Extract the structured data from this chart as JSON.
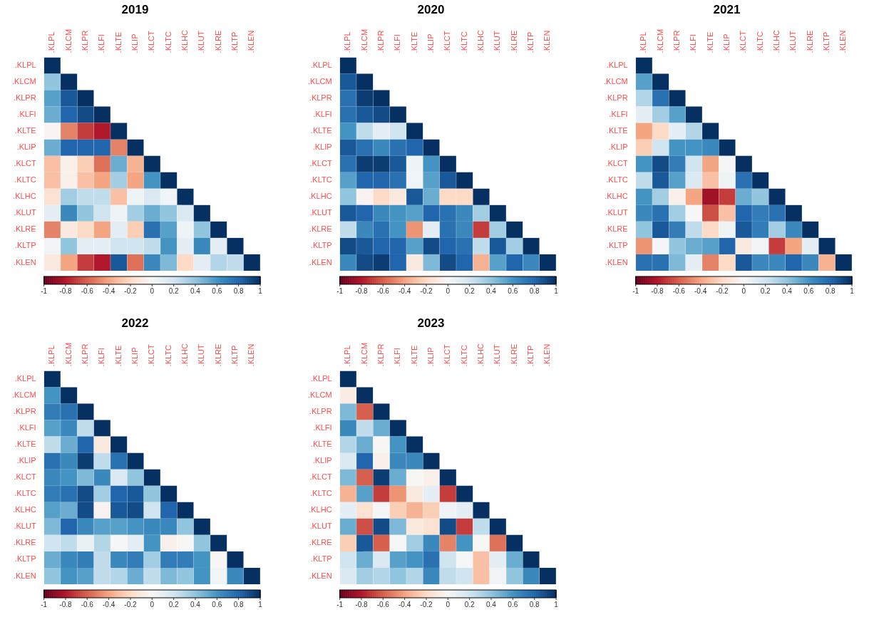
{
  "chart_data": [
    {
      "type": "heatmap",
      "title": "2019",
      "categories": [
        ".KLPL",
        ".KLCM",
        ".KLPR",
        ".KLFI",
        ".KLTE",
        ".KLIP",
        ".KLCT",
        ".KLTC",
        ".KLHC",
        ".KLUT",
        ".KLRE",
        ".KLTP",
        ".KLEN"
      ],
      "y_categories": [
        ".KLPL",
        ".KLCM",
        ".KLPR",
        ".KLFI",
        ".KLTE",
        ".KLIP",
        ".KLCT",
        ".KLTC",
        ".KLHC",
        ".KLUT",
        ".KLRE",
        ".KLTP",
        ".KLEN"
      ],
      "clim": [
        -1,
        1
      ],
      "cticks": [
        -1,
        -0.8,
        -0.6,
        -0.4,
        -0.2,
        0,
        0.2,
        0.4,
        0.6,
        0.8,
        1
      ],
      "cells": [
        [
          1,
          null,
          null,
          null,
          null,
          null,
          null,
          null,
          null,
          null,
          null,
          null,
          null
        ],
        [
          0.4,
          1,
          null,
          null,
          null,
          null,
          null,
          null,
          null,
          null,
          null,
          null,
          null
        ],
        [
          0.55,
          0.85,
          1,
          null,
          null,
          null,
          null,
          null,
          null,
          null,
          null,
          null,
          null
        ],
        [
          0.5,
          0.8,
          0.9,
          1,
          null,
          null,
          null,
          null,
          null,
          null,
          null,
          null,
          null
        ],
        [
          -0.02,
          -0.5,
          -0.7,
          -0.8,
          1,
          null,
          null,
          null,
          null,
          null,
          null,
          null,
          null
        ],
        [
          0.5,
          0.8,
          0.8,
          0.8,
          -0.5,
          1,
          null,
          null,
          null,
          null,
          null,
          null,
          null
        ],
        [
          -0.3,
          -0.05,
          -0.25,
          -0.55,
          0.5,
          -0.35,
          1,
          null,
          null,
          null,
          null,
          null,
          null
        ],
        [
          -0.3,
          -0.05,
          -0.3,
          -0.4,
          0.35,
          -0.4,
          0.6,
          1,
          null,
          null,
          null,
          null,
          null
        ],
        [
          -0.15,
          0.35,
          0.25,
          0.25,
          -0.3,
          0.05,
          0.15,
          0.03,
          1,
          null,
          null,
          null,
          null
        ],
        [
          0.1,
          0.65,
          0.4,
          0.2,
          0.05,
          0.35,
          0.5,
          0.4,
          0.15,
          1,
          null,
          null,
          null
        ],
        [
          -0.5,
          -0.1,
          -0.2,
          -0.4,
          0.1,
          -0.25,
          0.75,
          0.55,
          0.05,
          0.4,
          1,
          null,
          null
        ],
        [
          0.03,
          0.4,
          0.1,
          0.1,
          0.2,
          0.2,
          0.25,
          0.6,
          0.1,
          0.65,
          0.1,
          1,
          null
        ],
        [
          -0.1,
          -0.4,
          -0.7,
          -0.8,
          0.85,
          -0.55,
          0.65,
          0.45,
          -0.2,
          0.1,
          0.3,
          0.25,
          1
        ]
      ]
    },
    {
      "type": "heatmap",
      "title": "2020",
      "categories": [
        ".KLPL",
        ".KLCM",
        ".KLPR",
        ".KLFI",
        ".KLTE",
        ".KLIP",
        ".KLCT",
        ".KLTC",
        ".KLHC",
        ".KLUT",
        ".KLRE",
        ".KLTP",
        ".KLEN"
      ],
      "y_categories": [
        ".KLPL",
        ".KLCM",
        ".KLPR",
        ".KLFI",
        ".KLTE",
        ".KLIP",
        ".KLCT",
        ".KLTC",
        ".KLHC",
        ".KLUT",
        ".KLRE",
        ".KLTP",
        ".KLEN"
      ],
      "clim": [
        -1,
        1
      ],
      "cticks": [
        -1,
        -0.8,
        -0.6,
        -0.4,
        -0.2,
        0,
        0.2,
        0.4,
        0.6,
        0.8,
        1
      ],
      "cells": [
        [
          1,
          null,
          null,
          null,
          null,
          null,
          null,
          null,
          null,
          null,
          null,
          null,
          null
        ],
        [
          0.85,
          1,
          null,
          null,
          null,
          null,
          null,
          null,
          null,
          null,
          null,
          null,
          null
        ],
        [
          0.75,
          0.95,
          1,
          null,
          null,
          null,
          null,
          null,
          null,
          null,
          null,
          null,
          null
        ],
        [
          0.75,
          0.85,
          0.9,
          1,
          null,
          null,
          null,
          null,
          null,
          null,
          null,
          null,
          null
        ],
        [
          0.6,
          0.25,
          0.1,
          0.2,
          1,
          null,
          null,
          null,
          null,
          null,
          null,
          null,
          null
        ],
        [
          0.85,
          0.75,
          0.65,
          0.75,
          0.8,
          1,
          null,
          null,
          null,
          null,
          null,
          null,
          null
        ],
        [
          0.75,
          0.95,
          0.95,
          0.85,
          0.05,
          0.6,
          1,
          null,
          null,
          null,
          null,
          null,
          null
        ],
        [
          0.55,
          0.8,
          0.8,
          0.75,
          0.03,
          0.55,
          0.85,
          1,
          null,
          null,
          null,
          null,
          null
        ],
        [
          0.4,
          -0.03,
          -0.2,
          -0.1,
          0.85,
          0.5,
          -0.2,
          -0.2,
          1,
          null,
          null,
          null,
          null
        ],
        [
          0.85,
          0.8,
          0.65,
          0.6,
          0.55,
          0.8,
          0.75,
          0.65,
          0.35,
          1,
          null,
          null,
          null
        ],
        [
          0.25,
          0.65,
          0.75,
          0.6,
          -0.45,
          0.1,
          0.75,
          0.65,
          -0.7,
          0.35,
          1,
          null,
          null
        ],
        [
          0.9,
          0.85,
          0.8,
          0.8,
          0.55,
          0.9,
          0.8,
          0.75,
          0.25,
          0.85,
          0.35,
          1,
          null
        ],
        [
          0.65,
          0.9,
          0.95,
          0.8,
          -0.1,
          0.45,
          0.9,
          0.8,
          -0.35,
          0.55,
          0.8,
          0.65,
          1
        ]
      ]
    },
    {
      "type": "heatmap",
      "title": "2021",
      "categories": [
        ".KLPL",
        ".KLCM",
        ".KLPR",
        ".KLFI",
        ".KLTE",
        ".KLIP",
        ".KLCT",
        ".KLTC",
        ".KLHC",
        ".KLUT",
        ".KLRE",
        ".KLTP",
        ".KLEN"
      ],
      "y_categories": [
        ".KLPL",
        ".KLCM",
        ".KLPR",
        ".KLFI",
        ".KLTE",
        ".KLIP",
        ".KLCT",
        ".KLTC",
        ".KLHC",
        ".KLUT",
        ".KLRE",
        ".KLTP",
        ".KLEN"
      ],
      "clim": [
        -1,
        1
      ],
      "cticks": [
        -1,
        -0.8,
        -0.6,
        -0.4,
        -0.2,
        0,
        0.2,
        0.4,
        0.6,
        0.8,
        1
      ],
      "cells": [
        [
          1,
          null,
          null,
          null,
          null,
          null,
          null,
          null,
          null,
          null,
          null,
          null,
          null
        ],
        [
          0.55,
          1,
          null,
          null,
          null,
          null,
          null,
          null,
          null,
          null,
          null,
          null,
          null
        ],
        [
          0.3,
          0.75,
          1,
          null,
          null,
          null,
          null,
          null,
          null,
          null,
          null,
          null,
          null
        ],
        [
          0.1,
          0.35,
          0.55,
          1,
          null,
          null,
          null,
          null,
          null,
          null,
          null,
          null,
          null
        ],
        [
          -0.4,
          -0.2,
          0.1,
          0.3,
          1,
          null,
          null,
          null,
          null,
          null,
          null,
          null,
          null
        ],
        [
          -0.25,
          0.2,
          0.6,
          0.6,
          0.65,
          1,
          null,
          null,
          null,
          null,
          null,
          null,
          null
        ],
        [
          0.6,
          0.9,
          0.7,
          0.2,
          -0.4,
          0.02,
          1,
          null,
          null,
          null,
          null,
          null,
          null
        ],
        [
          0.25,
          0.85,
          0.55,
          0.15,
          -0.3,
          0.05,
          0.75,
          1,
          null,
          null,
          null,
          null,
          null
        ],
        [
          0.6,
          0.35,
          -0.05,
          -0.4,
          -0.85,
          -0.7,
          0.5,
          0.4,
          1,
          null,
          null,
          null,
          null
        ],
        [
          0.65,
          0.75,
          0.35,
          0,
          -0.65,
          -0.3,
          0.8,
          0.7,
          0.75,
          1,
          null,
          null,
          null
        ],
        [
          0.4,
          0.85,
          0.7,
          0.25,
          -0.2,
          0.05,
          0.85,
          0.7,
          0.35,
          0.65,
          1,
          null,
          null
        ],
        [
          -0.45,
          0.02,
          0.4,
          0.5,
          0.55,
          0.8,
          -0.1,
          0.03,
          -0.7,
          -0.4,
          0.1,
          1,
          null
        ],
        [
          0.75,
          0.75,
          0.45,
          0.1,
          -0.5,
          -0.2,
          0.85,
          0.65,
          0.65,
          0.8,
          0.65,
          -0.35,
          1
        ]
      ]
    },
    {
      "type": "heatmap",
      "title": "2022",
      "categories": [
        ".KLPL",
        ".KLCM",
        ".KLPR",
        ".KLFI",
        ".KLTE",
        ".KLIP",
        ".KLCT",
        ".KLTC",
        ".KLHC",
        ".KLUT",
        ".KLRE",
        ".KLTP",
        ".KLEN"
      ],
      "y_categories": [
        ".KLPL",
        ".KLCM",
        ".KLPR",
        ".KLFI",
        ".KLTE",
        ".KLIP",
        ".KLCT",
        ".KLTC",
        ".KLHC",
        ".KLUT",
        ".KLRE",
        ".KLTP",
        ".KLEN"
      ],
      "clim": [
        -1,
        1
      ],
      "cticks": [
        -1,
        -0.8,
        -0.6,
        -0.4,
        -0.2,
        0,
        0.2,
        0.4,
        0.6,
        0.8,
        1
      ],
      "cells": [
        [
          1,
          null,
          null,
          null,
          null,
          null,
          null,
          null,
          null,
          null,
          null,
          null,
          null
        ],
        [
          0.6,
          1,
          null,
          null,
          null,
          null,
          null,
          null,
          null,
          null,
          null,
          null,
          null
        ],
        [
          0.7,
          0.75,
          1,
          null,
          null,
          null,
          null,
          null,
          null,
          null,
          null,
          null,
          null
        ],
        [
          0.55,
          0.65,
          0.25,
          1,
          null,
          null,
          null,
          null,
          null,
          null,
          null,
          null,
          null
        ],
        [
          0.25,
          0.5,
          0.8,
          -0.1,
          1,
          null,
          null,
          null,
          null,
          null,
          null,
          null,
          null
        ],
        [
          0.75,
          0.65,
          0.95,
          0.25,
          0.75,
          1,
          null,
          null,
          null,
          null,
          null,
          null,
          null
        ],
        [
          0.65,
          0.6,
          0.45,
          0.65,
          0.15,
          0.4,
          1,
          null,
          null,
          null,
          null,
          null,
          null
        ],
        [
          0.7,
          0.75,
          0.9,
          0.35,
          0.8,
          0.85,
          0.4,
          1,
          null,
          null,
          null,
          null,
          null
        ],
        [
          0.55,
          0.5,
          0.9,
          -0.03,
          0.85,
          0.9,
          0.2,
          0.8,
          1,
          null,
          null,
          null,
          null
        ],
        [
          0.45,
          0.8,
          0.65,
          0.55,
          0.55,
          0.6,
          0.65,
          0.65,
          0.4,
          1,
          null,
          null,
          null
        ],
        [
          0.2,
          0.25,
          0.07,
          0.3,
          0.01,
          0.1,
          0.6,
          -0.05,
          -0.01,
          0.4,
          1,
          null,
          null
        ],
        [
          0.5,
          0.65,
          0.7,
          0.25,
          0.65,
          0.7,
          0.35,
          0.7,
          0.7,
          0.6,
          -0.01,
          1,
          null
        ],
        [
          0.4,
          0.6,
          0.55,
          0.25,
          0.3,
          0.5,
          0.25,
          0.45,
          0.4,
          0.6,
          0.03,
          0.65,
          1
        ]
      ]
    },
    {
      "type": "heatmap",
      "title": "2023",
      "categories": [
        ".KLPL",
        ".KLCM",
        ".KLPR",
        ".KLFI",
        ".KLTE",
        ".KLIP",
        ".KLCT",
        ".KLTC",
        ".KLHC",
        ".KLUT",
        ".KLRE",
        ".KLTP",
        ".KLEN"
      ],
      "y_categories": [
        ".KLPL",
        ".KLCM",
        ".KLPR",
        ".KLFI",
        ".KLTE",
        ".KLIP",
        ".KLCT",
        ".KLTC",
        ".KLHC",
        ".KLUT",
        ".KLRE",
        ".KLTP",
        ".KLEN"
      ],
      "clim": [
        -1,
        1
      ],
      "cticks": [
        -1,
        -0.8,
        -0.6,
        -0.4,
        -0.2,
        0,
        0.2,
        0.4,
        0.6,
        0.8,
        1
      ],
      "cells": [
        [
          1,
          null,
          null,
          null,
          null,
          null,
          null,
          null,
          null,
          null,
          null,
          null,
          null
        ],
        [
          -0.07,
          1,
          null,
          null,
          null,
          null,
          null,
          null,
          null,
          null,
          null,
          null,
          null
        ],
        [
          0.45,
          -0.6,
          1,
          null,
          null,
          null,
          null,
          null,
          null,
          null,
          null,
          null,
          null
        ],
        [
          0.65,
          0.25,
          0.5,
          1,
          null,
          null,
          null,
          null,
          null,
          null,
          null,
          null,
          null
        ],
        [
          0.3,
          0.5,
          -0.01,
          0.6,
          1,
          null,
          null,
          null,
          null,
          null,
          null,
          null,
          null
        ],
        [
          0.15,
          0.8,
          -0.05,
          0.65,
          0.65,
          1,
          null,
          null,
          null,
          null,
          null,
          null,
          null
        ],
        [
          0.45,
          -0.6,
          0.95,
          0.5,
          -0.01,
          -0.05,
          1,
          null,
          null,
          null,
          null,
          null,
          null
        ],
        [
          -0.35,
          0.55,
          -0.7,
          -0.45,
          -0.1,
          0.1,
          -0.7,
          1,
          null,
          null,
          null,
          null,
          null
        ],
        [
          0.1,
          -0.15,
          0.02,
          -0.25,
          -0.35,
          -0.25,
          0.05,
          0.1,
          1,
          null,
          null,
          null,
          null
        ],
        [
          0.5,
          -0.65,
          0.9,
          0.45,
          -0.1,
          -0.15,
          0.9,
          -0.7,
          0.25,
          1,
          null,
          null,
          null
        ],
        [
          -0.25,
          0.85,
          -0.6,
          0.01,
          0.35,
          0.65,
          -0.5,
          0.6,
          -0.01,
          -0.55,
          1,
          null,
          null
        ],
        [
          0.2,
          0.5,
          0.15,
          0.55,
          0.6,
          0.75,
          0.2,
          0.01,
          -0.3,
          0.1,
          0.5,
          1,
          null
        ],
        [
          0.15,
          0.35,
          0.3,
          0.4,
          0.3,
          0.65,
          0.25,
          0.2,
          -0.3,
          0.03,
          0.4,
          0.65,
          1
        ]
      ]
    }
  ]
}
